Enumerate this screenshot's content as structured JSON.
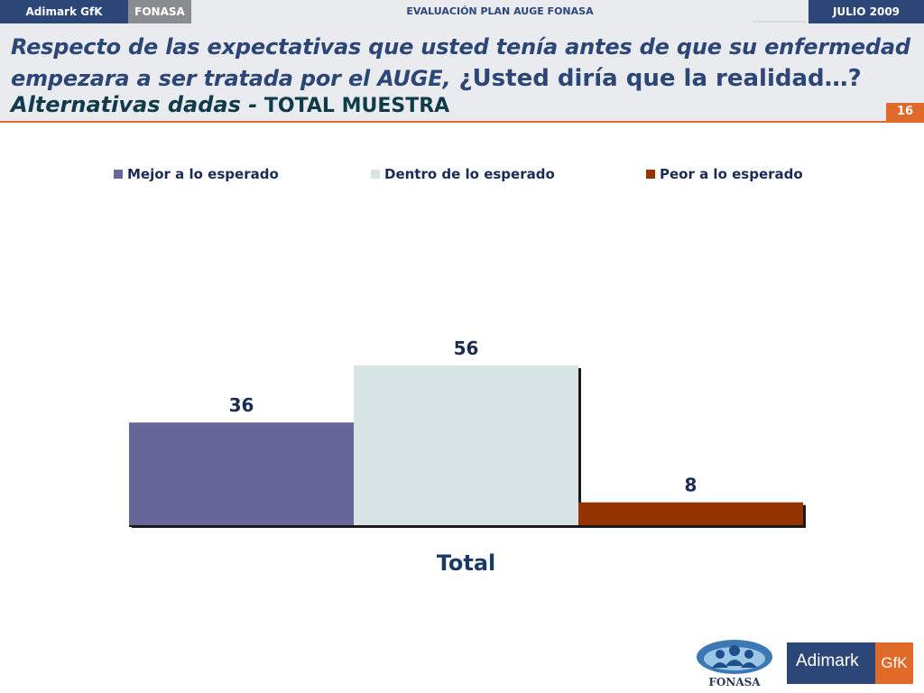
{
  "topbar": {
    "brand": "Adimark GfK",
    "client": "FONASA",
    "report_title": "EVALUACIÓN PLAN AUGE FONASA",
    "date": "JULIO 2009"
  },
  "header": {
    "question_line1": "Respecto de las expectativas que usted tenía antes de que su enfermedad",
    "question_line2_italic": "empezara a ser  tratada por el AUGE,",
    "question_line2_upright": " ¿Usted diría que la realidad…?",
    "subtitle_italic": "Alternativas dadas -",
    "subtitle_upright": " TOTAL MUESTRA",
    "page_number": "16"
  },
  "chart_data": {
    "type": "bar",
    "categories": [
      "Total"
    ],
    "series": [
      {
        "name": "Mejor a lo esperado",
        "values": [
          36
        ],
        "color": "#67669a"
      },
      {
        "name": "Dentro de lo esperado",
        "values": [
          56
        ],
        "color": "#d8e3e6"
      },
      {
        "name": "Peor a lo esperado",
        "values": [
          8
        ],
        "color": "#943200"
      }
    ],
    "legend_position": "top",
    "grid": false,
    "data_labels": true
  },
  "logos": {
    "fonasa": "FONASA",
    "adimark": "Adimark",
    "gfk": "GfK"
  }
}
